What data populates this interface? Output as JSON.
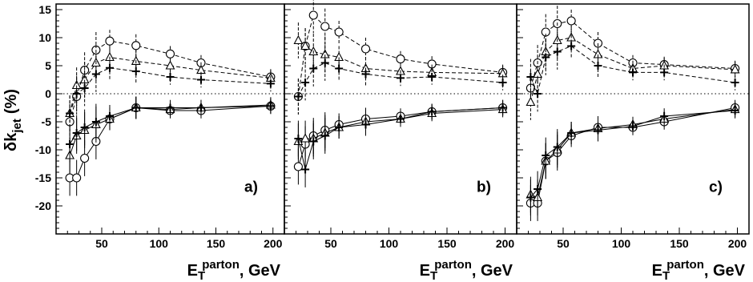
{
  "chart_data": {
    "type": "scatter",
    "ylabel": "δk",
    "ylabel_sub": "jet",
    "ylabel_unit": "(%)",
    "xlabel_main": "E",
    "xlabel_sub": "T",
    "xlabel_sup": "parton",
    "xlabel_unit": ",  GeV",
    "ylim": [
      -25,
      16
    ],
    "y_ticks": [
      -20,
      -15,
      -10,
      -5,
      0,
      5,
      10,
      15
    ],
    "x_ticks": [
      50,
      100,
      150,
      200
    ],
    "reference_line": 0,
    "panels": [
      {
        "label": "a)",
        "xlim": [
          10,
          210
        ],
        "series": [
          {
            "marker": "circle",
            "style": "dashed",
            "x": [
              22,
              28,
              35,
              45,
              57,
              80,
              110,
              137,
              198
            ],
            "y": [
              -5,
              -0.5,
              4.2,
              7.8,
              9.4,
              8.6,
              7.1,
              5.5,
              3.0
            ]
          },
          {
            "marker": "triangle",
            "style": "dashed",
            "x": [
              22,
              28,
              35,
              45,
              57,
              80,
              110,
              137,
              198
            ],
            "y": [
              -3.5,
              1.5,
              2.5,
              5.5,
              6.5,
              5.8,
              5.0,
              4.2,
              2.8
            ]
          },
          {
            "marker": "cross",
            "style": "dashed",
            "x": [
              22,
              28,
              35,
              45,
              57,
              80,
              110,
              137,
              198
            ],
            "y": [
              -3.5,
              0,
              1.0,
              3.5,
              4.6,
              4.0,
              3.0,
              2.5,
              1.8
            ]
          },
          {
            "marker": "circle",
            "style": "solid",
            "x": [
              22,
              28,
              35,
              45,
              57,
              80,
              110,
              137,
              198
            ],
            "y": [
              -15,
              -15,
              -11.5,
              -8.5,
              -4.5,
              -2.5,
              -3.0,
              -3.0,
              -2.2
            ]
          },
          {
            "marker": "triangle",
            "style": "solid",
            "x": [
              22,
              28,
              35,
              45,
              57,
              80,
              110,
              137,
              198
            ],
            "y": [
              -11,
              -7.5,
              -6.5,
              -5.5,
              -4.5,
              -2.5,
              -2.8,
              -2.5,
              -2.0
            ]
          },
          {
            "marker": "cross",
            "style": "solid",
            "x": [
              22,
              28,
              35,
              45,
              57,
              80,
              110,
              137,
              198
            ],
            "y": [
              -9,
              -7,
              -6,
              -5,
              -4.0,
              -2.5,
              -2.5,
              -2.5,
              -2.2
            ]
          }
        ]
      },
      {
        "label": "b)",
        "xlim": [
          10,
          210
        ],
        "series": [
          {
            "marker": "circle",
            "style": "dashed",
            "x": [
              22,
              28,
              35,
              45,
              57,
              80,
              110,
              137,
              198
            ],
            "y": [
              -0.5,
              8.5,
              14,
              12,
              11,
              8,
              6.2,
              5.3,
              3.8
            ]
          },
          {
            "marker": "triangle",
            "style": "dashed",
            "x": [
              22,
              28,
              35,
              45,
              57,
              80,
              110,
              137,
              198
            ],
            "y": [
              9.5,
              8.5,
              7.5,
              7.0,
              6.5,
              4.5,
              4.0,
              3.8,
              3.6
            ]
          },
          {
            "marker": "cross",
            "style": "dashed",
            "x": [
              22,
              28,
              35,
              45,
              57,
              80,
              110,
              137,
              198
            ],
            "y": [
              -0.5,
              2.0,
              4.5,
              5.5,
              4.5,
              3.5,
              2.8,
              3.0,
              2.0
            ]
          },
          {
            "marker": "circle",
            "style": "solid",
            "x": [
              22,
              28,
              35,
              45,
              57,
              80,
              110,
              137,
              198
            ],
            "y": [
              -13,
              -9,
              -7.5,
              -6.5,
              -5.5,
              -4.5,
              -4.0,
              -3.2,
              -2.5
            ]
          },
          {
            "marker": "triangle",
            "style": "solid",
            "x": [
              22,
              28,
              35,
              45,
              57,
              80,
              110,
              137,
              198
            ],
            "y": [
              -8.5,
              -8,
              -8,
              -7,
              -6,
              -5,
              -4.5,
              -3.5,
              -2.8
            ]
          },
          {
            "marker": "cross",
            "style": "solid",
            "x": [
              22,
              28,
              35,
              45,
              57,
              80,
              110,
              137,
              198
            ],
            "y": [
              -8,
              -13.5,
              -8.5,
              -7.5,
              -6.0,
              -5.5,
              -4.5,
              -3.2,
              -2.5
            ]
          }
        ]
      },
      {
        "label": "c)",
        "xlim": [
          10,
          210
        ],
        "series": [
          {
            "marker": "circle",
            "style": "dashed",
            "x": [
              22,
              28,
              35,
              45,
              57,
              80,
              110,
              137,
              198
            ],
            "y": [
              1.0,
              5.5,
              11,
              12.5,
              13,
              9,
              5.5,
              5.2,
              4.5
            ]
          },
          {
            "marker": "triangle",
            "style": "dashed",
            "x": [
              22,
              28,
              35,
              45,
              57,
              80,
              110,
              137,
              198
            ],
            "y": [
              -1.5,
              3.5,
              7.5,
              9.5,
              10,
              7,
              4.5,
              5.0,
              4.3
            ]
          },
          {
            "marker": "cross",
            "style": "dashed",
            "x": [
              22,
              28,
              35,
              45,
              57,
              80,
              110,
              137,
              198
            ],
            "y": [
              3.0,
              0,
              6.5,
              7.5,
              8.5,
              5.0,
              3.8,
              3.8,
              2.0
            ]
          },
          {
            "marker": "circle",
            "style": "solid",
            "x": [
              22,
              28,
              35,
              45,
              57,
              80,
              110,
              137,
              198
            ],
            "y": [
              -19.5,
              -19.5,
              -12,
              -10.5,
              -7.5,
              -6.0,
              -6.0,
              -5.0,
              -2.5
            ]
          },
          {
            "marker": "triangle",
            "style": "solid",
            "x": [
              22,
              28,
              35,
              45,
              57,
              80,
              110,
              137,
              198
            ],
            "y": [
              -18,
              -18.5,
              -12,
              -10,
              -7.0,
              -6.2,
              -5.5,
              -4.5,
              -2.8
            ]
          },
          {
            "marker": "cross",
            "style": "solid",
            "x": [
              22,
              28,
              35,
              45,
              57,
              80,
              110,
              137,
              198
            ],
            "y": [
              -18.5,
              -17,
              -11,
              -9.5,
              -7.0,
              -6.5,
              -5.8,
              -4.0,
              -3.0
            ]
          }
        ]
      }
    ]
  }
}
